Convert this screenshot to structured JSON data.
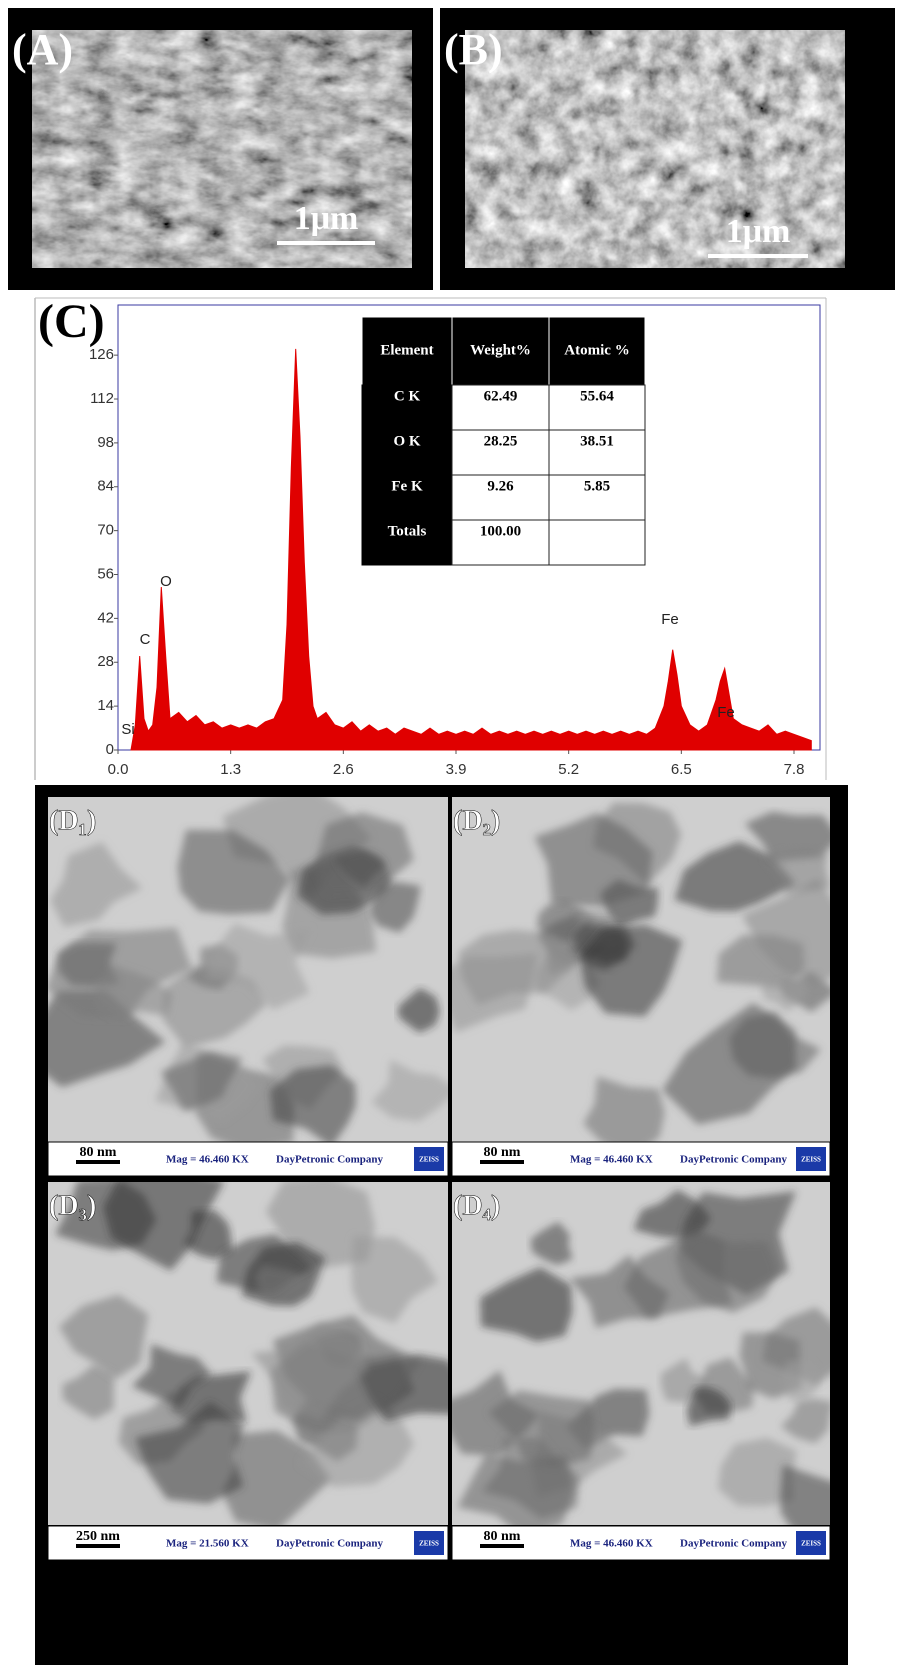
{
  "sem_panels": [
    {
      "label": "(A)",
      "scale_bar": "1μm"
    },
    {
      "label": "(B)",
      "scale_bar": "1μm"
    }
  ],
  "chart_data": {
    "type": "area",
    "label": "(C)",
    "color": "#e00000",
    "annotations": [
      "C",
      "O",
      "Fe",
      "Fe",
      "Si"
    ],
    "x": [
      0.15,
      0.2,
      0.25,
      0.3,
      0.35,
      0.4,
      0.45,
      0.5,
      0.55,
      0.6,
      0.7,
      0.8,
      0.9,
      1.0,
      1.1,
      1.2,
      1.3,
      1.4,
      1.5,
      1.6,
      1.7,
      1.8,
      1.9,
      1.95,
      2.0,
      2.05,
      2.1,
      2.15,
      2.2,
      2.25,
      2.3,
      2.4,
      2.5,
      2.6,
      2.7,
      2.8,
      2.9,
      3.0,
      3.1,
      3.2,
      3.3,
      3.4,
      3.5,
      3.6,
      3.7,
      3.8,
      3.9,
      4.0,
      4.1,
      4.2,
      4.3,
      4.4,
      4.5,
      4.6,
      4.7,
      4.8,
      4.9,
      5.0,
      5.1,
      5.2,
      5.3,
      5.4,
      5.5,
      5.6,
      5.7,
      5.8,
      5.9,
      6.0,
      6.1,
      6.2,
      6.3,
      6.35,
      6.4,
      6.45,
      6.5,
      6.6,
      6.7,
      6.8,
      6.9,
      6.95,
      7.0,
      7.05,
      7.1,
      7.2,
      7.3,
      7.4,
      7.5,
      7.6,
      7.7,
      7.8,
      7.9,
      8.0
    ],
    "values": [
      0,
      8,
      30,
      10,
      6,
      8,
      20,
      52,
      30,
      10,
      12,
      9,
      11,
      8,
      9,
      7,
      8,
      7,
      8,
      7,
      9,
      10,
      16,
      40,
      90,
      128,
      100,
      60,
      30,
      14,
      10,
      12,
      8,
      7,
      9,
      6,
      8,
      6,
      7,
      5,
      7,
      6,
      5,
      7,
      5,
      6,
      5,
      6,
      5,
      7,
      5,
      6,
      5,
      6,
      5,
      6,
      5,
      6,
      5,
      6,
      5,
      6,
      5,
      6,
      5,
      6,
      5,
      6,
      5,
      7,
      14,
      22,
      32,
      24,
      14,
      8,
      6,
      8,
      16,
      22,
      26,
      18,
      10,
      8,
      7,
      6,
      8,
      5,
      6,
      5,
      4,
      3
    ],
    "xlim": [
      0,
      8.1
    ],
    "xticks": [
      {
        "value": 0,
        "label": "0.0"
      },
      1.3,
      2.6,
      3.9,
      5.2,
      6.5,
      7.8
    ],
    "ylim": [
      0,
      142
    ],
    "yticks": [
      0,
      14,
      28,
      42,
      56,
      70,
      84,
      98,
      112,
      126
    ],
    "table": {
      "header": [
        "Element",
        "Weight%",
        "Atomic %"
      ],
      "rows": [
        [
          "C K",
          "62.49",
          "55.64"
        ],
        [
          "O K",
          "28.25",
          "38.51"
        ],
        [
          "Fe K",
          "9.26",
          "5.85"
        ],
        [
          "Totals",
          "100.00"
        ]
      ]
    }
  },
  "tem_panels": [
    {
      "label": "(D₁)",
      "scale_bar": "80 nm",
      "magnification": "Mag = 46.460 KX",
      "company": "DayPetronic Company",
      "logo": "ZEISS"
    },
    {
      "label": "(D₂)",
      "scale_bar": "80 nm",
      "magnification": "Mag = 46.460 KX",
      "company": "DayPetronic Company",
      "logo": "ZEISS"
    },
    {
      "label": "(D₃)",
      "scale_bar": "250 nm",
      "magnification": "Mag = 21.560 KX",
      "company": "DayPetronic Company",
      "logo": "ZEISS"
    },
    {
      "label": "(D₄)",
      "scale_bar": "80 nm",
      "magnification": "Mag = 46.460 KX",
      "company": "DayPetronic Company",
      "logo": "ZEISS"
    }
  ]
}
